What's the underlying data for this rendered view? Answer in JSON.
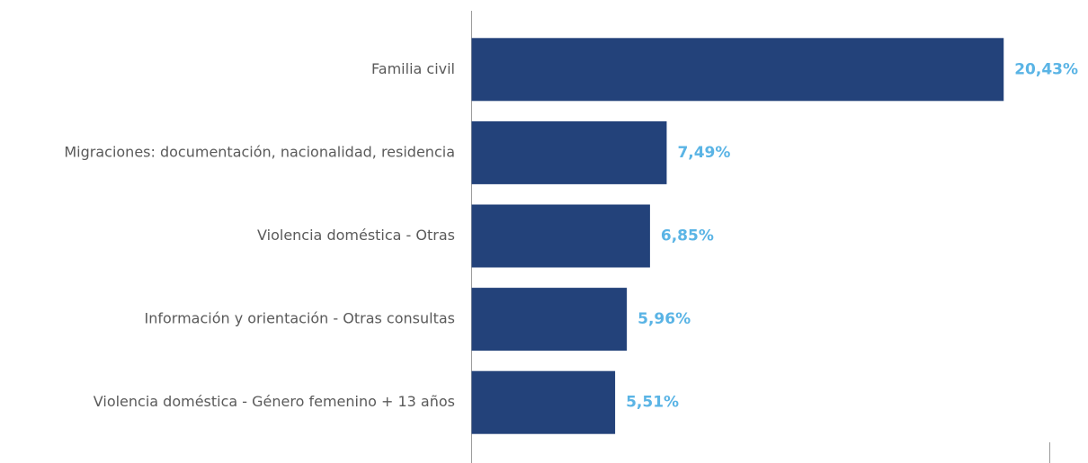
{
  "chart_data": {
    "type": "bar",
    "orientation": "horizontal",
    "categories": [
      "Familia civil",
      "Migraciones: documentación, nacionalidad, residencia",
      "Violencia doméstica - Otras",
      "Información y orientación - Otras consultas",
      "Violencia doméstica - Género femenino + 13 años"
    ],
    "values": [
      20.43,
      7.49,
      6.85,
      5.96,
      5.51
    ],
    "value_labels": [
      "20,43%",
      "7,49%",
      "6,85%",
      "5,96%",
      "5,51%"
    ],
    "color": "#23427a",
    "label_color": "#5ab4e5",
    "xlim": [
      0,
      22.2
    ]
  }
}
